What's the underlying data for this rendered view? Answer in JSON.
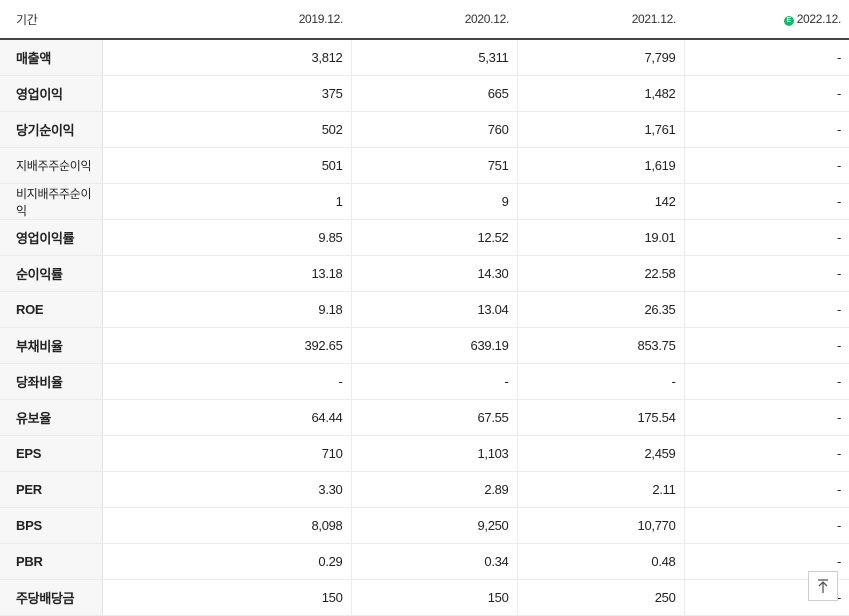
{
  "header": {
    "label": "기간",
    "periods": [
      "2019.12.",
      "2020.12.",
      "2021.12.",
      "2022.12."
    ],
    "estimate_icon": "estimate-badge-icon",
    "estimate_icon_glyph": "E",
    "estimate_color": "#18b56a"
  },
  "rows": [
    {
      "label": "매출액",
      "values": [
        "3,812",
        "5,311",
        "7,799",
        "-"
      ]
    },
    {
      "label": "영업이익",
      "values": [
        "375",
        "665",
        "1,482",
        "-"
      ]
    },
    {
      "label": "당기순이익",
      "values": [
        "502",
        "760",
        "1,761",
        "-"
      ]
    },
    {
      "label": "지배주주순이익",
      "values": [
        "501",
        "751",
        "1,619",
        "-"
      ]
    },
    {
      "label": "비지배주주순이익",
      "values": [
        "1",
        "9",
        "142",
        "-"
      ]
    },
    {
      "label": "영업이익률",
      "values": [
        "9.85",
        "12.52",
        "19.01",
        "-"
      ]
    },
    {
      "label": "순이익률",
      "values": [
        "13.18",
        "14.30",
        "22.58",
        "-"
      ]
    },
    {
      "label": "ROE",
      "values": [
        "9.18",
        "13.04",
        "26.35",
        "-"
      ]
    },
    {
      "label": "부채비율",
      "values": [
        "392.65",
        "639.19",
        "853.75",
        "-"
      ]
    },
    {
      "label": "당좌비율",
      "values": [
        "-",
        "-",
        "-",
        "-"
      ]
    },
    {
      "label": "유보율",
      "values": [
        "64.44",
        "67.55",
        "175.54",
        "-"
      ]
    },
    {
      "label": "EPS",
      "values": [
        "710",
        "1,103",
        "2,459",
        "-"
      ]
    },
    {
      "label": "PER",
      "values": [
        "3.30",
        "2.89",
        "2.11",
        "-"
      ]
    },
    {
      "label": "BPS",
      "values": [
        "8,098",
        "9,250",
        "10,770",
        "-"
      ]
    },
    {
      "label": "PBR",
      "values": [
        "0.29",
        "0.34",
        "0.48",
        "-"
      ]
    },
    {
      "label": "주당배당금",
      "values": [
        "150",
        "150",
        "250",
        "-"
      ]
    }
  ],
  "scroll_top_icon": "arrow-up-to-top-icon"
}
